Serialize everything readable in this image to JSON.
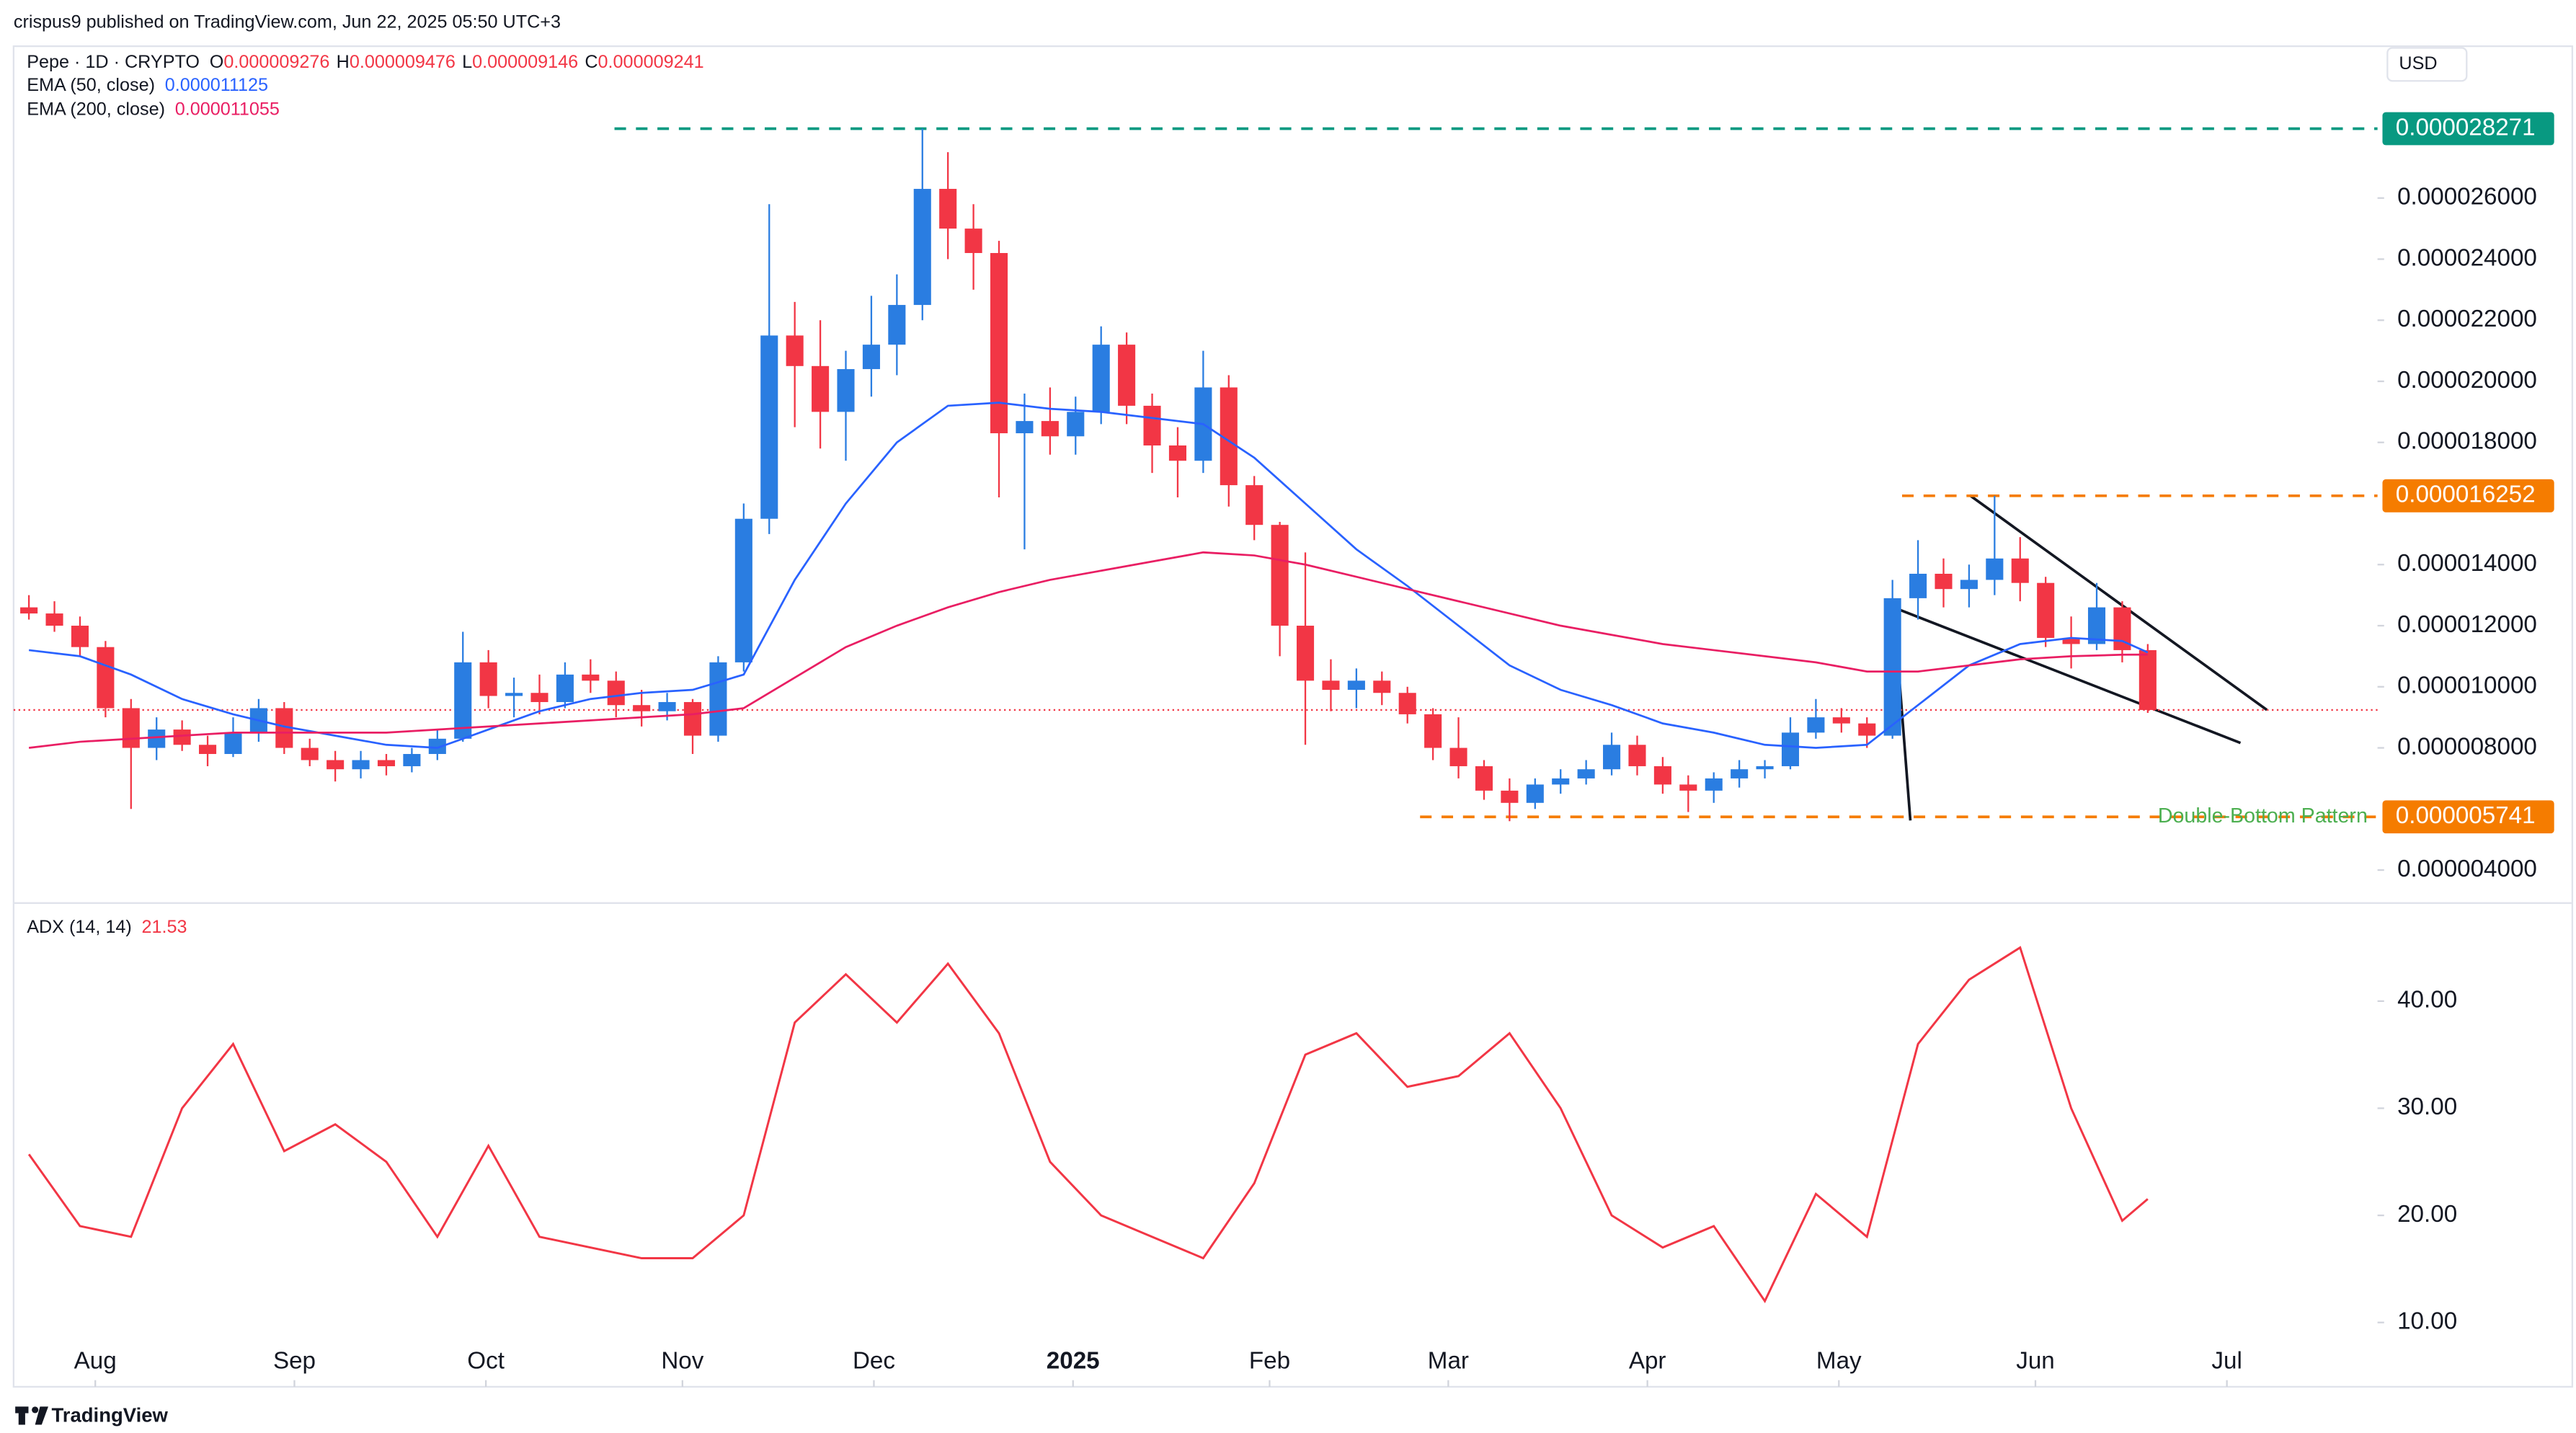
{
  "header": {
    "publisher": "crispus9 published on TradingView.com, Jun 22, 2025 05:50 UTC+3"
  },
  "footer": {
    "brand": "TradingView"
  },
  "chart_data": [
    {
      "type": "candlestick",
      "title": "Pepe · 1D · CRYPTO",
      "currency": "USD",
      "ohlc": [
        {
          "label": "O",
          "value": "0.000009276"
        },
        {
          "label": "H",
          "value": "0.000009476"
        },
        {
          "label": "L",
          "value": "0.000009146"
        },
        {
          "label": "C",
          "value": "0.000009241"
        }
      ],
      "up_color": "#2a7de1",
      "down_color": "#f23645",
      "open": [
        1.26e-05,
        1.24e-05,
        1.2e-05,
        1.13e-05,
        9.3e-06,
        8e-06,
        8.6e-06,
        8.1e-06,
        7.8e-06,
        8.5e-06,
        9.3e-06,
        8e-06,
        7.6e-06,
        7.3e-06,
        7.6e-06,
        7.4e-06,
        7.8e-06,
        8.3e-06,
        1.08e-05,
        9.7e-06,
        9.8e-06,
        9.5e-06,
        1.04e-05,
        1.02e-05,
        9.4e-06,
        9.2e-06,
        9.5e-06,
        8.4e-06,
        1.08e-05,
        1.55e-05,
        2.15e-05,
        2.05e-05,
        1.9e-05,
        2.04e-05,
        2.12e-05,
        2.25e-05,
        2.63e-05,
        2.5e-05,
        2.42e-05,
        1.83e-05,
        1.87e-05,
        1.82e-05,
        1.9e-05,
        2.12e-05,
        1.92e-05,
        1.79e-05,
        1.74e-05,
        1.98e-05,
        1.66e-05,
        1.53e-05,
        1.2e-05,
        1.02e-05,
        9.9e-06,
        1.02e-05,
        9.8e-06,
        9.1e-06,
        8e-06,
        7.4e-06,
        6.6e-06,
        6.2e-06,
        6.8e-06,
        7e-06,
        7.3e-06,
        8.1e-06,
        7.4e-06,
        6.8e-06,
        6.6e-06,
        7e-06,
        7.3e-06,
        7.4e-06,
        8.5e-06,
        9e-06,
        8.8e-06,
        8.4e-06,
        1.29e-05,
        1.37e-05,
        1.32e-05,
        1.35e-05,
        1.42e-05,
        1.34e-05,
        1.16e-05,
        1.14e-05,
        1.26e-05,
        1.12e-05
      ],
      "high": [
        1.3e-05,
        1.28e-05,
        1.23e-05,
        1.15e-05,
        9.6e-06,
        9e-06,
        8.9e-06,
        8.4e-06,
        9e-06,
        9.6e-06,
        9.5e-06,
        8.3e-06,
        7.9e-06,
        7.9e-06,
        7.8e-06,
        8e-06,
        8.6e-06,
        1.18e-05,
        1.12e-05,
        1.03e-05,
        1.04e-05,
        1.08e-05,
        1.09e-05,
        1.05e-05,
        9.9e-06,
        9.8e-06,
        9.6e-06,
        1.1e-05,
        1.6e-05,
        2.58e-05,
        2.26e-05,
        2.2e-05,
        2.1e-05,
        2.28e-05,
        2.35e-05,
        2.8271e-05,
        2.75e-05,
        2.58e-05,
        2.46e-05,
        1.96e-05,
        1.98e-05,
        1.95e-05,
        2.18e-05,
        2.16e-05,
        1.96e-05,
        1.85e-05,
        2.1e-05,
        2.02e-05,
        1.69e-05,
        1.54e-05,
        1.44e-05,
        1.09e-05,
        1.06e-05,
        1.05e-05,
        1e-05,
        9.3e-06,
        9e-06,
        7.6e-06,
        7e-06,
        7e-06,
        7.3e-06,
        7.6e-06,
        8.5e-06,
        8.4e-06,
        7.7e-06,
        7.1e-06,
        7.2e-06,
        7.6e-06,
        7.6e-06,
        9e-06,
        9.6e-06,
        9.3e-06,
        9e-06,
        1.35e-05,
        1.48e-05,
        1.42e-05,
        1.4e-05,
        1.6252e-05,
        1.49e-05,
        1.36e-05,
        1.23e-05,
        1.34e-05,
        1.28e-05,
        1.14e-05
      ],
      "low": [
        1.22e-05,
        1.18e-05,
        1.1e-05,
        9e-06,
        6e-06,
        7.6e-06,
        7.9e-06,
        7.4e-06,
        7.7e-06,
        8.2e-06,
        7.8e-06,
        7.4e-06,
        6.9e-06,
        7e-06,
        7.1e-06,
        7.2e-06,
        7.6e-06,
        8.2e-06,
        9.3e-06,
        9e-06,
        9.1e-06,
        9.3e-06,
        9.8e-06,
        9e-06,
        8.7e-06,
        8.9e-06,
        7.8e-06,
        8.2e-06,
        1.05e-05,
        1.5e-05,
        1.85e-05,
        1.78e-05,
        1.74e-05,
        1.95e-05,
        2.02e-05,
        2.2e-05,
        2.4e-05,
        2.3e-05,
        1.62e-05,
        1.45e-05,
        1.76e-05,
        1.76e-05,
        1.86e-05,
        1.86e-05,
        1.7e-05,
        1.62e-05,
        1.7e-05,
        1.59e-05,
        1.48e-05,
        1.1e-05,
        8.1e-06,
        9.2e-06,
        9.3e-06,
        9.4e-06,
        8.8e-06,
        7.6e-06,
        7e-06,
        6.3e-06,
        5.6e-06,
        6e-06,
        6.5e-06,
        6.8e-06,
        7.1e-06,
        7.1e-06,
        6.5e-06,
        5.9e-06,
        6.2e-06,
        6.7e-06,
        7e-06,
        7.3e-06,
        8.3e-06,
        8.5e-06,
        8e-06,
        8.3e-06,
        1.22e-05,
        1.26e-05,
        1.26e-05,
        1.3e-05,
        1.28e-05,
        1.13e-05,
        1.06e-05,
        1.12e-05,
        1.08e-05,
        9.146e-06
      ],
      "close": [
        1.24e-05,
        1.2e-05,
        1.13e-05,
        9.3e-06,
        8e-06,
        8.6e-06,
        8.1e-06,
        7.8e-06,
        8.5e-06,
        9.3e-06,
        8e-06,
        7.6e-06,
        7.3e-06,
        7.6e-06,
        7.4e-06,
        7.8e-06,
        8.3e-06,
        1.08e-05,
        9.7e-06,
        9.8e-06,
        9.5e-06,
        1.04e-05,
        1.02e-05,
        9.4e-06,
        9.2e-06,
        9.5e-06,
        8.4e-06,
        1.08e-05,
        1.55e-05,
        2.15e-05,
        2.05e-05,
        1.9e-05,
        2.04e-05,
        2.12e-05,
        2.25e-05,
        2.63e-05,
        2.5e-05,
        2.42e-05,
        1.83e-05,
        1.87e-05,
        1.82e-05,
        1.9e-05,
        2.12e-05,
        1.92e-05,
        1.79e-05,
        1.74e-05,
        1.98e-05,
        1.66e-05,
        1.53e-05,
        1.2e-05,
        1.02e-05,
        9.9e-06,
        1.02e-05,
        9.8e-06,
        9.1e-06,
        8e-06,
        7.4e-06,
        6.6e-06,
        6.2e-06,
        6.8e-06,
        7e-06,
        7.3e-06,
        8.1e-06,
        7.4e-06,
        6.8e-06,
        6.6e-06,
        7e-06,
        7.3e-06,
        7.4e-06,
        8.5e-06,
        9e-06,
        8.8e-06,
        8.4e-06,
        1.29e-05,
        1.37e-05,
        1.32e-05,
        1.35e-05,
        1.42e-05,
        1.34e-05,
        1.16e-05,
        1.14e-05,
        1.26e-05,
        1.12e-05,
        9.241e-06
      ],
      "line_x": [
        0,
        2,
        4,
        6,
        8,
        10,
        12,
        14,
        16,
        18,
        20,
        22,
        24,
        26,
        28,
        30,
        32,
        34,
        36,
        38,
        40,
        42,
        44,
        46,
        48,
        50,
        52,
        54,
        56,
        58,
        60,
        62,
        64,
        66,
        68,
        70,
        72,
        74,
        76,
        78,
        80,
        82,
        83
      ],
      "lines": [
        {
          "name": "EMA (50, close)",
          "readout": "0.000011125",
          "color": "#2962ff",
          "values": [
            1.12e-05,
            1.1e-05,
            1.04e-05,
            9.6e-06,
            9.1e-06,
            8.7e-06,
            8.4e-06,
            8.1e-06,
            8e-06,
            8.6e-06,
            9.2e-06,
            9.6e-06,
            9.8e-06,
            9.9e-06,
            1.04e-05,
            1.35e-05,
            1.6e-05,
            1.8e-05,
            1.92e-05,
            1.93e-05,
            1.91e-05,
            1.9e-05,
            1.88e-05,
            1.86e-05,
            1.75e-05,
            1.6e-05,
            1.45e-05,
            1.33e-05,
            1.2e-05,
            1.07e-05,
            9.9e-06,
            9.4e-06,
            8.8e-06,
            8.5e-06,
            8.1e-06,
            8e-06,
            8.1e-06,
            9.4e-06,
            1.07e-05,
            1.14e-05,
            1.16e-05,
            1.15e-05,
            1.1125e-05
          ]
        },
        {
          "name": "EMA (200, close)",
          "readout": "0.000011055",
          "color": "#e91e63",
          "values": [
            8e-06,
            8.2e-06,
            8.3e-06,
            8.4e-06,
            8.5e-06,
            8.5e-06,
            8.5e-06,
            8.5e-06,
            8.6e-06,
            8.7e-06,
            8.8e-06,
            8.9e-06,
            9e-06,
            9.1e-06,
            9.3e-06,
            1.03e-05,
            1.13e-05,
            1.2e-05,
            1.26e-05,
            1.31e-05,
            1.35e-05,
            1.38e-05,
            1.41e-05,
            1.44e-05,
            1.43e-05,
            1.4e-05,
            1.36e-05,
            1.32e-05,
            1.28e-05,
            1.24e-05,
            1.2e-05,
            1.17e-05,
            1.14e-05,
            1.12e-05,
            1.1e-05,
            1.08e-05,
            1.05e-05,
            1.05e-05,
            1.07e-05,
            1.09e-05,
            1.1e-05,
            1.105e-05,
            1.1055e-05
          ]
        }
      ],
      "levels": [
        {
          "value": 2.8271e-05,
          "label": "0.000028271",
          "color": "#089981"
        },
        {
          "value": 1.6252e-05,
          "label": "0.000016252",
          "color": "#f57c00"
        },
        {
          "value": 5.741e-06,
          "label": "0.000005741",
          "color": "#f57c00",
          "annotation": "Double-Bottom Pattern",
          "annotation_color": "#4caf50"
        }
      ],
      "xlim": [
        -0.6,
        92
      ],
      "ylim": [
        2.92e-06,
        3.097e-05
      ],
      "yticks": [
        {
          "value": 4e-06,
          "label": "0.000004000"
        },
        {
          "value": 8e-06,
          "label": "0.000008000"
        },
        {
          "value": 1e-05,
          "label": "0.000010000"
        },
        {
          "value": 1.2e-05,
          "label": "0.000012000"
        },
        {
          "value": 1.4e-05,
          "label": "0.000014000"
        },
        {
          "value": 1.8e-05,
          "label": "0.000018000"
        },
        {
          "value": 2e-05,
          "label": "0.000020000"
        },
        {
          "value": 2.2e-05,
          "label": "0.000022000"
        },
        {
          "value": 2.4e-05,
          "label": "0.000024000"
        },
        {
          "value": 2.6e-05,
          "label": "0.000026000"
        }
      ],
      "grid": false
    },
    {
      "type": "line",
      "title": "ADX (14, 14)",
      "readout": "21.53",
      "color": "#f23645",
      "x": [
        0,
        2,
        4,
        6,
        8,
        10,
        12,
        14,
        16,
        18,
        20,
        22,
        24,
        26,
        28,
        30,
        32,
        34,
        36,
        38,
        40,
        42,
        44,
        46,
        48,
        50,
        52,
        54,
        56,
        58,
        60,
        62,
        64,
        66,
        68,
        70,
        72,
        74,
        76,
        78,
        80,
        82,
        83
      ],
      "values": [
        25.7,
        19,
        18,
        30,
        36,
        26,
        28.5,
        25,
        18,
        26.5,
        18,
        17,
        16,
        16,
        20,
        38,
        42.5,
        38,
        43.5,
        37,
        25,
        20,
        18,
        16,
        23,
        35,
        37,
        32,
        33,
        37,
        30,
        20,
        17,
        19,
        12,
        22,
        18,
        36,
        42,
        45,
        30,
        19.5,
        21.53
      ],
      "xlim": [
        -0.6,
        92
      ],
      "ylim": [
        4,
        49
      ],
      "yticks": [
        {
          "value": 10,
          "label": "10.00"
        },
        {
          "value": 20,
          "label": "20.00"
        },
        {
          "value": 30,
          "label": "30.00"
        },
        {
          "value": 40,
          "label": "40.00"
        }
      ],
      "xticks": [
        {
          "value": 2.6,
          "label": "Aug"
        },
        {
          "value": 10.4,
          "label": "Sep"
        },
        {
          "value": 17.9,
          "label": "Oct"
        },
        {
          "value": 25.6,
          "label": "Nov"
        },
        {
          "value": 33.1,
          "label": "Dec"
        },
        {
          "value": 40.9,
          "label": "2025"
        },
        {
          "value": 48.6,
          "label": "Feb"
        },
        {
          "value": 55.6,
          "label": "Mar"
        },
        {
          "value": 63.4,
          "label": "Apr"
        },
        {
          "value": 70.9,
          "label": "May"
        },
        {
          "value": 78.6,
          "label": "Jun"
        },
        {
          "value": 86.1,
          "label": "Jul"
        }
      ],
      "grid": false
    }
  ]
}
